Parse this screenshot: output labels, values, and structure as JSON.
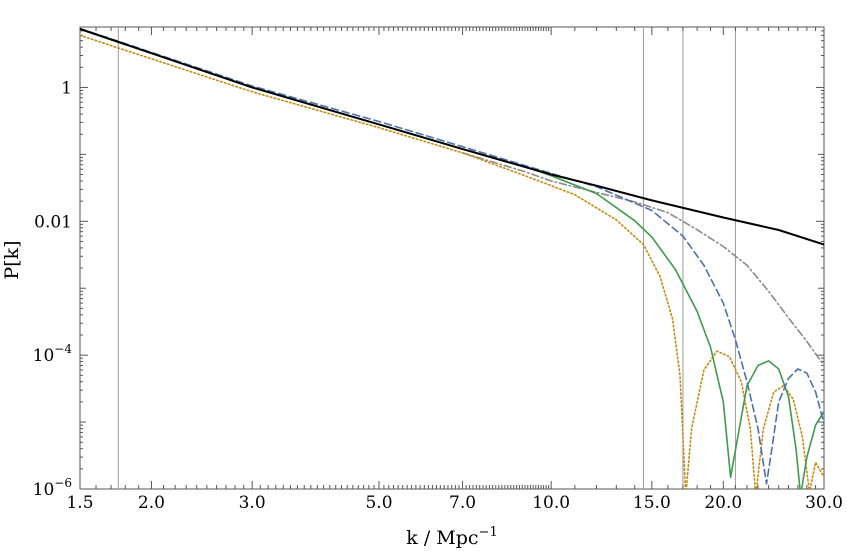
{
  "chart_data": {
    "type": "line",
    "xscale": "log",
    "yscale": "log",
    "xlim": [
      1.5,
      30.0
    ],
    "ylim": [
      1e-06,
      8
    ],
    "xlabel": "k / Mpc",
    "xlabel_sup": "−1",
    "ylabel": "P[k]",
    "grid": false,
    "legend": "none",
    "x_ticks": [
      {
        "value": 1.5,
        "label": "1.5"
      },
      {
        "value": 2.0,
        "label": "2.0"
      },
      {
        "value": 3.0,
        "label": "3.0"
      },
      {
        "value": 5.0,
        "label": "5.0"
      },
      {
        "value": 7.0,
        "label": "7.0"
      },
      {
        "value": 10.0,
        "label": "10.0"
      },
      {
        "value": 15.0,
        "label": "15.0"
      },
      {
        "value": 20.0,
        "label": "20.0"
      },
      {
        "value": 30.0,
        "label": "30.0"
      }
    ],
    "y_ticks": [
      {
        "value": 1,
        "label": "1",
        "exp": ""
      },
      {
        "value": 0.01,
        "label": "0.01",
        "exp": ""
      },
      {
        "value": 0.0001,
        "label": "10",
        "exp": "−4"
      },
      {
        "value": 1e-06,
        "label": "10",
        "exp": "−6"
      }
    ],
    "vertical_lines": [
      1.75,
      14.5,
      17.0,
      21.0
    ],
    "series": [
      {
        "id": "black-solid",
        "color": "#000000",
        "style": "solid",
        "points": [
          [
            1.5,
            7.5
          ],
          [
            3.0,
            1.0
          ],
          [
            5.0,
            0.28
          ],
          [
            7.0,
            0.12
          ],
          [
            10.0,
            0.05
          ],
          [
            12.0,
            0.034
          ],
          [
            15.0,
            0.0205
          ],
          [
            20.0,
            0.0114
          ],
          [
            25.0,
            0.0074
          ],
          [
            30.0,
            0.0045
          ]
        ]
      },
      {
        "id": "blue-dashed",
        "color": "#4f6fae",
        "style": "dashed",
        "points": [
          [
            1.5,
            7.6
          ],
          [
            3.0,
            1.05
          ],
          [
            5.0,
            0.31
          ],
          [
            7.0,
            0.13
          ],
          [
            10.0,
            0.052
          ],
          [
            12.0,
            0.033
          ],
          [
            15.0,
            0.0145
          ],
          [
            17.0,
            0.006
          ],
          [
            18.5,
            0.0022
          ],
          [
            20.0,
            0.0006
          ],
          [
            21.0,
            0.00017
          ],
          [
            22.0,
            4e-05
          ],
          [
            23.0,
            8e-06
          ],
          [
            23.8,
            1.2e-06
          ],
          [
            24.2,
            3e-06
          ],
          [
            25.0,
            2e-05
          ],
          [
            26.0,
            4.5e-05
          ],
          [
            27.0,
            6.2e-05
          ],
          [
            28.0,
            5.4e-05
          ],
          [
            29.0,
            2.8e-05
          ],
          [
            30.0,
            9.5e-06
          ]
        ]
      },
      {
        "id": "green-solid",
        "color": "#3e9b4c",
        "style": "solid",
        "points": [
          [
            1.5,
            7.4
          ],
          [
            3.0,
            1.0
          ],
          [
            5.0,
            0.28
          ],
          [
            7.0,
            0.12
          ],
          [
            9.0,
            0.066
          ],
          [
            10.0,
            0.048
          ],
          [
            12.0,
            0.026
          ],
          [
            14.0,
            0.0102
          ],
          [
            15.0,
            0.0058
          ],
          [
            16.5,
            0.0019
          ],
          [
            18.0,
            0.00045
          ],
          [
            19.0,
            0.00013
          ],
          [
            20.0,
            2e-05
          ],
          [
            20.6,
            1.5e-06
          ],
          [
            21.2,
            6e-06
          ],
          [
            22.0,
            3.5e-05
          ],
          [
            23.0,
            7e-05
          ],
          [
            24.0,
            8.2e-05
          ],
          [
            25.0,
            6.2e-05
          ],
          [
            26.0,
            2.4e-05
          ],
          [
            26.8,
            4e-06
          ],
          [
            27.3,
            8e-07
          ],
          [
            28.0,
            3e-06
          ],
          [
            29.0,
            9e-06
          ],
          [
            30.0,
            1.45e-05
          ]
        ]
      },
      {
        "id": "orange-dotted",
        "color": "#c9880a",
        "style": "dotted",
        "points": [
          [
            1.5,
            6.0
          ],
          [
            3.0,
            0.86
          ],
          [
            5.0,
            0.25
          ],
          [
            7.0,
            0.105
          ],
          [
            9.0,
            0.048
          ],
          [
            11.0,
            0.025
          ],
          [
            13.0,
            0.0105
          ],
          [
            14.5,
            0.0045
          ],
          [
            15.5,
            0.0015
          ],
          [
            16.3,
            0.00035
          ],
          [
            16.8,
            5e-05
          ],
          [
            17.2,
            8e-07
          ],
          [
            17.6,
            8e-06
          ],
          [
            18.5,
            6e-05
          ],
          [
            19.5,
            0.000115
          ],
          [
            20.5,
            9.5e-05
          ],
          [
            21.5,
            4e-05
          ],
          [
            22.3,
            8e-06
          ],
          [
            22.8,
            8e-07
          ],
          [
            23.5,
            8e-06
          ],
          [
            24.5,
            2.8e-05
          ],
          [
            25.5,
            3.5e-05
          ],
          [
            26.5,
            2.2e-05
          ],
          [
            27.5,
            6e-06
          ],
          [
            28.3,
            9e-07
          ],
          [
            29.0,
            2.5e-06
          ],
          [
            30.0,
            1.5e-06
          ]
        ]
      },
      {
        "id": "gray-dashdot",
        "color": "#8a8a8a",
        "style": "dashdot",
        "points": [
          [
            7.0,
            0.105
          ],
          [
            9.0,
            0.055
          ],
          [
            10.0,
            0.04
          ],
          [
            12.0,
            0.027
          ],
          [
            14.0,
            0.0195
          ],
          [
            16.0,
            0.0135
          ],
          [
            18.0,
            0.0075
          ],
          [
            20.0,
            0.0042
          ],
          [
            22.0,
            0.0022
          ],
          [
            24.0,
            0.0009
          ],
          [
            26.0,
            0.00036
          ],
          [
            28.0,
            0.00016
          ],
          [
            30.0,
            7e-05
          ]
        ]
      }
    ]
  }
}
